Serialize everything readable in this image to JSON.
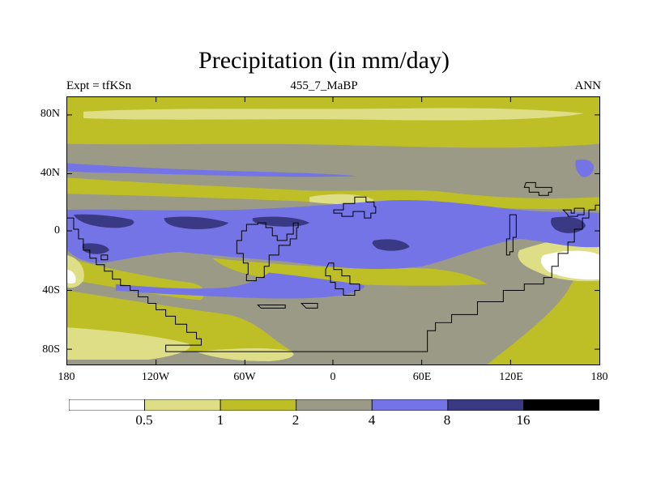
{
  "title": "Precipitation (in mm/day)",
  "subtitle": {
    "left": "Expt = tfKSn",
    "center": "455_7_MaBP",
    "right": "ANN"
  },
  "map": {
    "projection": "cylindrical-equidistant",
    "lon_range": [
      -180,
      180
    ],
    "lat_range": [
      -90,
      90
    ],
    "lat_ticks": [
      "80N",
      "40N",
      "0",
      "40S",
      "80S"
    ],
    "lon_ticks": [
      "180",
      "120W",
      "60W",
      "0",
      "60E",
      "120E",
      "180"
    ],
    "coastline_color": "#000000"
  },
  "colorbar": {
    "levels": [
      "0.5",
      "1",
      "2",
      "4",
      "8",
      "16"
    ],
    "colors": [
      "#ffffff",
      "#dede86",
      "#bebe26",
      "#9a9a86",
      "#7474e6",
      "#3a3a84",
      "#000000"
    ]
  },
  "chart_data": {
    "type": "heatmap",
    "title": "Precipitation (in mm/day)",
    "variable": "Precipitation",
    "units": "mm/day",
    "contour_levels": [
      0.5,
      1,
      2,
      4,
      8,
      16
    ],
    "x_ticks": [
      "180",
      "120W",
      "60W",
      "0",
      "60E",
      "120E",
      "180"
    ],
    "y_ticks": [
      "80N",
      "40N",
      "0",
      "40S",
      "80S"
    ]
  }
}
